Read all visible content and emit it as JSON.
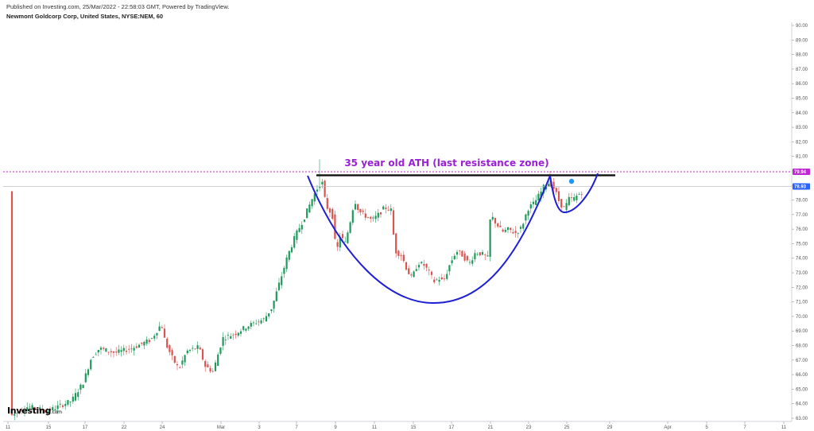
{
  "header": {
    "published": "Published on Investing.com, 25/Mar/2022 - 22:58:03 GMT, Powered by TradingView.",
    "symbol": "Newmont Goldcorp Corp, United States, NYSE:NEM, 60"
  },
  "logo": {
    "text": "Investing",
    "suffix": ".com"
  },
  "colors": {
    "up": "#26a69a",
    "up_fill": "#1f9a5a",
    "down": "#d9534f",
    "ath_line": "#c026d3",
    "price_line": "#2962ff",
    "curve": "#1f1fd6",
    "resistance": "#111111",
    "annotation": "#9b1fd6"
  },
  "chart_data": {
    "type": "candlestick",
    "title": "",
    "xlabel": "",
    "ylabel": "",
    "ylim": [
      63,
      90
    ],
    "grid": false,
    "y_ticks": [
      "63.00",
      "64.00",
      "65.00",
      "66.00",
      "67.00",
      "68.00",
      "69.00",
      "70.00",
      "71.00",
      "72.00",
      "73.00",
      "74.00",
      "75.00",
      "76.00",
      "77.00",
      "78.00",
      "79.00",
      "80.00",
      "81.00",
      "82.00",
      "83.00",
      "84.00",
      "85.00",
      "86.00",
      "87.00",
      "88.00",
      "89.00",
      "90.00"
    ],
    "x_ticks": [
      "11",
      "15",
      "17",
      "22",
      "24",
      "Mar",
      "3",
      "7",
      "9",
      "11",
      "15",
      "17",
      "21",
      "23",
      "25",
      "29",
      "Apr",
      "5",
      "7",
      "11"
    ],
    "price_badges": [
      {
        "label": "79.94",
        "value": 79.94,
        "color": "#c026d3"
      },
      {
        "label": "78.93",
        "value": 78.93,
        "color": "#2962ff"
      }
    ],
    "annotation": "35 year old ATH (last resistance zone)",
    "resistance_level": 79.7,
    "path_points": [
      [
        15,
        63.2
      ],
      [
        35,
        63.8
      ],
      [
        60,
        63.5
      ],
      [
        90,
        64.2
      ],
      [
        105,
        65.5
      ],
      [
        115,
        67.2
      ],
      [
        125,
        67.8
      ],
      [
        145,
        67.5
      ],
      [
        165,
        67.8
      ],
      [
        190,
        68.4
      ],
      [
        203,
        69.5
      ],
      [
        208,
        68.2
      ],
      [
        218,
        67.0
      ],
      [
        225,
        66.4
      ],
      [
        235,
        67.6
      ],
      [
        250,
        67.9
      ],
      [
        258,
        66.6
      ],
      [
        268,
        66.2
      ],
      [
        280,
        68.5
      ],
      [
        295,
        68.8
      ],
      [
        310,
        69.3
      ],
      [
        322,
        69.6
      ],
      [
        332,
        69.8
      ],
      [
        342,
        70.6
      ],
      [
        352,
        72.4
      ],
      [
        362,
        74.2
      ],
      [
        372,
        75.6
      ],
      [
        382,
        76.7
      ],
      [
        392,
        78.0
      ],
      [
        400,
        78.9
      ],
      [
        405,
        79.3
      ],
      [
        410,
        77.6
      ],
      [
        418,
        77.0
      ],
      [
        423,
        74.3
      ],
      [
        428,
        75.6
      ],
      [
        434,
        75.0
      ],
      [
        440,
        76.4
      ],
      [
        446,
        78.0
      ],
      [
        452,
        77.2
      ],
      [
        460,
        76.9
      ],
      [
        468,
        76.6
      ],
      [
        476,
        77.0
      ],
      [
        484,
        77.5
      ],
      [
        492,
        77.3
      ],
      [
        497,
        74.5
      ],
      [
        505,
        74.2
      ],
      [
        512,
        73.2
      ],
      [
        518,
        72.6
      ],
      [
        526,
        73.7
      ],
      [
        534,
        73.5
      ],
      [
        540,
        73.0
      ],
      [
        546,
        72.4
      ],
      [
        552,
        72.6
      ],
      [
        558,
        72.4
      ],
      [
        566,
        73.6
      ],
      [
        574,
        74.5
      ],
      [
        582,
        74.2
      ],
      [
        590,
        73.6
      ],
      [
        598,
        74.4
      ],
      [
        606,
        74.3
      ],
      [
        614,
        74.0
      ],
      [
        617,
        77.0
      ],
      [
        624,
        76.4
      ],
      [
        632,
        75.8
      ],
      [
        640,
        76.0
      ],
      [
        648,
        75.7
      ],
      [
        656,
        76.1
      ],
      [
        664,
        77.4
      ],
      [
        672,
        77.8
      ],
      [
        680,
        78.5
      ],
      [
        686,
        79.1
      ],
      [
        692,
        79.2
      ],
      [
        698,
        78.7
      ],
      [
        704,
        77.8
      ],
      [
        710,
        77.4
      ],
      [
        716,
        78.1
      ],
      [
        722,
        78.1
      ],
      [
        728,
        78.4
      ],
      [
        734,
        78.6
      ]
    ]
  }
}
